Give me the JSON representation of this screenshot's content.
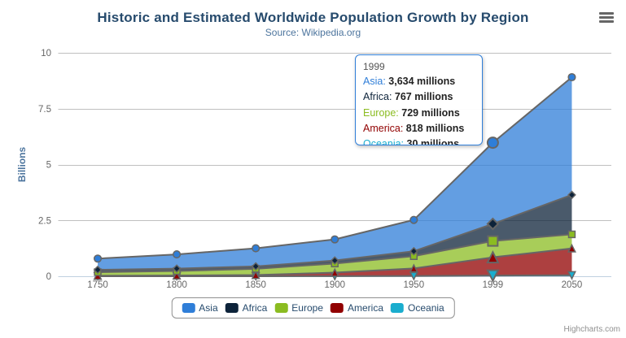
{
  "chart": {
    "title": "Historic and Estimated Worldwide Population Growth by Region",
    "subtitle": "Source: Wikipedia.org"
  },
  "credits": {
    "label": "Highcharts.com"
  },
  "tooltip": {
    "header": "1999",
    "suffix": "millions",
    "border_color": "#2f7ed8",
    "rows": [
      {
        "name": "Asia",
        "value": "3,634",
        "color": "#2f7ed8"
      },
      {
        "name": "Africa",
        "value": "767",
        "color": "#0d233a"
      },
      {
        "name": "Europe",
        "value": "729",
        "color": "#8bbc21"
      },
      {
        "name": "America",
        "value": "818",
        "color": "#910000"
      },
      {
        "name": "Oceania",
        "value": "30",
        "color": "#1aadce"
      }
    ]
  },
  "chart_data": {
    "type": "area",
    "stacking": "normal",
    "title": "Historic and Estimated Worldwide Population Growth by Region",
    "subtitle": "Source: Wikipedia.org",
    "categories": [
      "1750",
      "1800",
      "1850",
      "1900",
      "1950",
      "1999",
      "2050"
    ],
    "xlabel": "",
    "ylabel": "Billions",
    "ylim": [
      0,
      10
    ],
    "yticks": [
      0,
      2.5,
      5,
      7.5,
      10
    ],
    "values_unit": "millions",
    "grid": true,
    "legend_position": "bottom",
    "series": [
      {
        "name": "Asia",
        "color": "#2f7ed8",
        "symbol": "circle",
        "values": [
          502,
          635,
          809,
          947,
          1402,
          3634,
          5268
        ]
      },
      {
        "name": "Africa",
        "color": "#0d233a",
        "symbol": "diamond",
        "values": [
          106,
          107,
          111,
          133,
          221,
          767,
          1766
        ]
      },
      {
        "name": "Europe",
        "color": "#8bbc21",
        "symbol": "square",
        "values": [
          163,
          203,
          276,
          408,
          547,
          729,
          628
        ]
      },
      {
        "name": "America",
        "color": "#910000",
        "symbol": "triangle",
        "values": [
          18,
          31,
          54,
          156,
          339,
          818,
          1201
        ]
      },
      {
        "name": "Oceania",
        "color": "#1aadce",
        "symbol": "triangle-down",
        "values": [
          2,
          2,
          2,
          6,
          13,
          30,
          46
        ]
      }
    ],
    "stack_bottom_to_top": [
      "Oceania",
      "America",
      "Europe",
      "Africa",
      "Asia"
    ],
    "hovered_category": "1999",
    "hovered_index": 5,
    "styles": {
      "line_color": "#666666",
      "fill_opacity": 0.75,
      "grid_color": "#C0C0C0",
      "axis_line_color": "#C0D0E0",
      "label_color": "#666666",
      "title_color": "#274b6d",
      "subtitle_color": "#4d759e",
      "axis_title_color": "#4d759e",
      "legend_text_color": "#274b6d",
      "legend_border_color": "#909090"
    }
  }
}
